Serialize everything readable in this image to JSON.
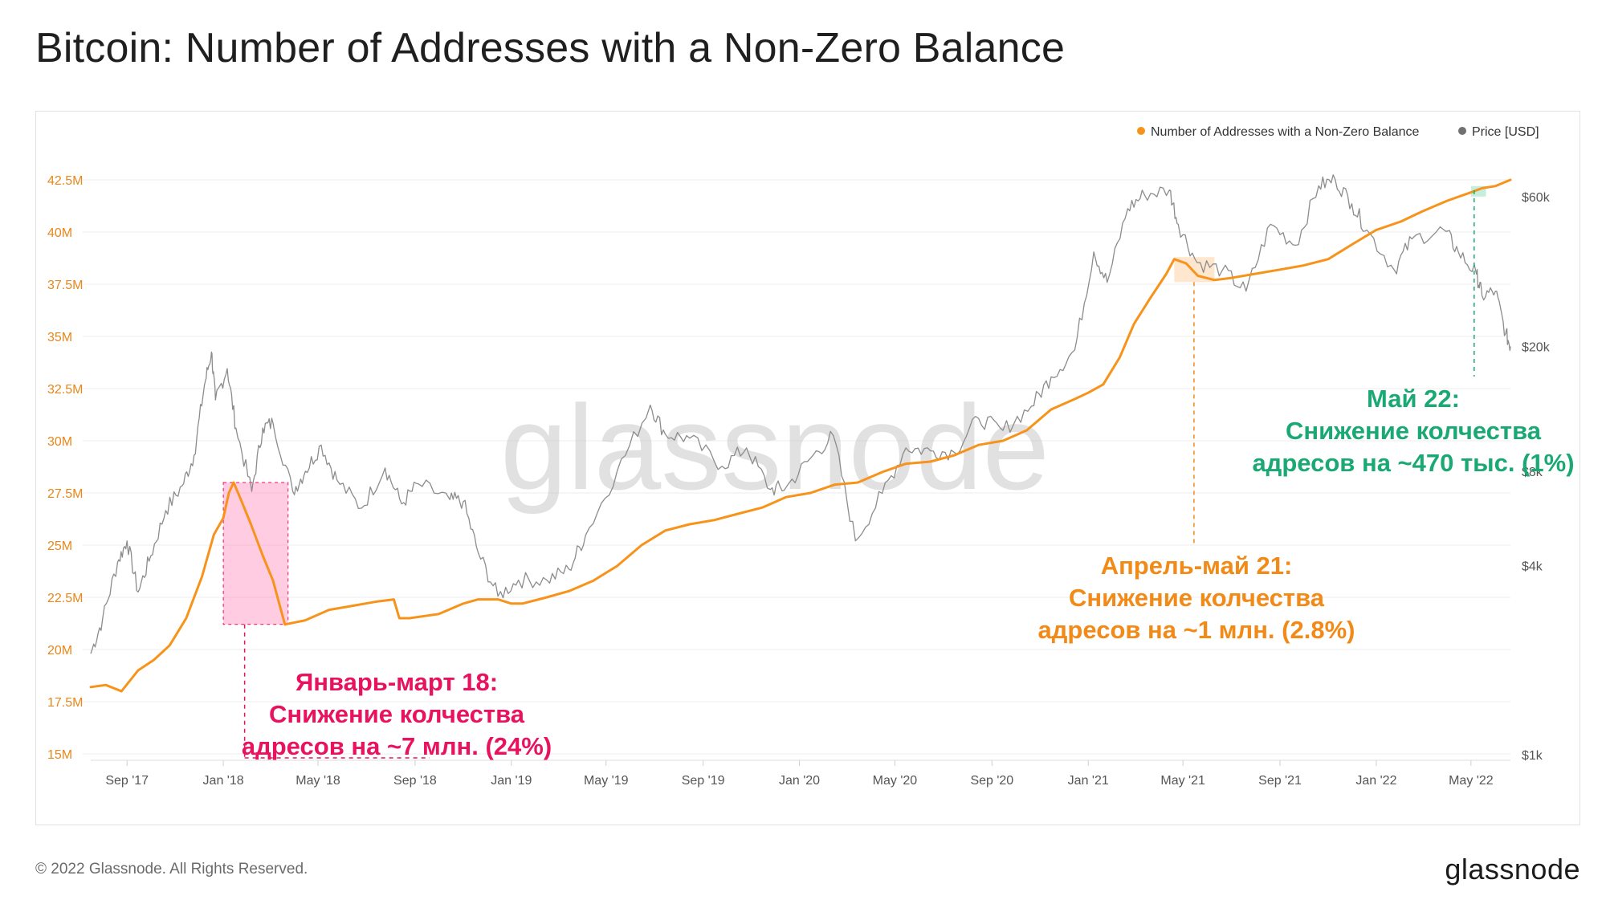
{
  "title": "Bitcoin: Number of Addresses with a Non-Zero Balance",
  "footer": "© 2022 Glassnode. All Rights Reserved.",
  "brand": "glassnode",
  "watermark": "glassnode",
  "colors": {
    "addresses": "#f7931a",
    "price": "#8c8c8c",
    "grid": "#ececec",
    "axis_label": "#e8871a",
    "annotation_jan18": "#e8125f",
    "annotation_apr21": "#f28a17",
    "annotation_may22": "#1aa974"
  },
  "chart_data": {
    "type": "line",
    "title": "Bitcoin: Number of Addresses with a Non-Zero Balance",
    "legend": {
      "placement": "top-right",
      "entries": [
        {
          "label": "Number of Addresses with a Non-Zero Balance",
          "color": "#f7931a"
        },
        {
          "label": "Price [USD]",
          "color": "#707070"
        }
      ]
    },
    "x_ticks": [
      "Sep '17",
      "Jan '18",
      "May '18",
      "Sep '18",
      "Jan '19",
      "May '19",
      "Sep '19",
      "Jan '20",
      "May '20",
      "Sep '20",
      "Jan '21",
      "May '21",
      "Sep '21",
      "Jan '22",
      "May '22"
    ],
    "x_range": [
      "2017-07-17",
      "2022-06-20"
    ],
    "y_left": {
      "ticks": [
        "15M",
        "17.5M",
        "20M",
        "22.5M",
        "25M",
        "27.5M",
        "30M",
        "32.5M",
        "35M",
        "37.5M",
        "40M",
        "42.5M"
      ],
      "range": [
        15000000,
        42500000
      ]
    },
    "y_right": {
      "scale": "log",
      "ticks": [
        "$1k",
        "$4k",
        "$8k",
        "$20k",
        "$60k"
      ]
    },
    "grid": true,
    "series": [
      {
        "name": "Number of Addresses with a Non-Zero Balance",
        "axis": "left",
        "points": [
          [
            "2017-07-17",
            18.2
          ],
          [
            "2017-08-05",
            18.3
          ],
          [
            "2017-08-25",
            18.0
          ],
          [
            "2017-09-15",
            19.0
          ],
          [
            "2017-10-05",
            19.5
          ],
          [
            "2017-10-25",
            20.2
          ],
          [
            "2017-11-15",
            21.5
          ],
          [
            "2017-12-05",
            23.5
          ],
          [
            "2017-12-20",
            25.5
          ],
          [
            "2018-01-01",
            26.3
          ],
          [
            "2018-01-08",
            27.5
          ],
          [
            "2018-01-14",
            28.0
          ],
          [
            "2018-01-22",
            27.3
          ],
          [
            "2018-02-05",
            26.0
          ],
          [
            "2018-02-20",
            24.5
          ],
          [
            "2018-03-05",
            23.3
          ],
          [
            "2018-03-20",
            21.2
          ],
          [
            "2018-04-15",
            21.4
          ],
          [
            "2018-05-15",
            21.9
          ],
          [
            "2018-06-15",
            22.1
          ],
          [
            "2018-07-15",
            22.3
          ],
          [
            "2018-08-05",
            22.4
          ],
          [
            "2018-08-12",
            21.5
          ],
          [
            "2018-08-25",
            21.5
          ],
          [
            "2018-10-01",
            21.7
          ],
          [
            "2018-11-01",
            22.2
          ],
          [
            "2018-11-20",
            22.4
          ],
          [
            "2018-12-15",
            22.4
          ],
          [
            "2019-01-01",
            22.2
          ],
          [
            "2019-01-15",
            22.2
          ],
          [
            "2019-02-15",
            22.5
          ],
          [
            "2019-03-15",
            22.8
          ],
          [
            "2019-04-15",
            23.3
          ],
          [
            "2019-05-15",
            24.0
          ],
          [
            "2019-06-15",
            25.0
          ],
          [
            "2019-07-15",
            25.7
          ],
          [
            "2019-08-15",
            26.0
          ],
          [
            "2019-09-15",
            26.2
          ],
          [
            "2019-10-15",
            26.5
          ],
          [
            "2019-11-15",
            26.8
          ],
          [
            "2019-12-15",
            27.3
          ],
          [
            "2020-01-15",
            27.5
          ],
          [
            "2020-02-15",
            27.9
          ],
          [
            "2020-03-15",
            28.0
          ],
          [
            "2020-04-15",
            28.5
          ],
          [
            "2020-05-15",
            28.9
          ],
          [
            "2020-06-15",
            29.0
          ],
          [
            "2020-07-15",
            29.3
          ],
          [
            "2020-08-15",
            29.8
          ],
          [
            "2020-09-15",
            30.0
          ],
          [
            "2020-10-15",
            30.5
          ],
          [
            "2020-11-15",
            31.5
          ],
          [
            "2020-12-15",
            32.0
          ],
          [
            "2021-01-01",
            32.3
          ],
          [
            "2021-01-20",
            32.7
          ],
          [
            "2021-02-10",
            34.0
          ],
          [
            "2021-02-28",
            35.6
          ],
          [
            "2021-03-20",
            36.8
          ],
          [
            "2021-04-10",
            38.0
          ],
          [
            "2021-04-20",
            38.7
          ],
          [
            "2021-05-05",
            38.5
          ],
          [
            "2021-05-20",
            37.9
          ],
          [
            "2021-06-10",
            37.7
          ],
          [
            "2021-07-01",
            37.8
          ],
          [
            "2021-08-01",
            38.0
          ],
          [
            "2021-09-01",
            38.2
          ],
          [
            "2021-10-01",
            38.4
          ],
          [
            "2021-11-01",
            38.7
          ],
          [
            "2021-12-01",
            39.4
          ],
          [
            "2022-01-01",
            40.1
          ],
          [
            "2022-02-01",
            40.5
          ],
          [
            "2022-03-01",
            41.0
          ],
          [
            "2022-04-01",
            41.5
          ],
          [
            "2022-05-01",
            41.9
          ],
          [
            "2022-05-15",
            42.1
          ],
          [
            "2022-06-01",
            42.2
          ],
          [
            "2022-06-20",
            42.5
          ]
        ]
      },
      {
        "name": "Price [USD]",
        "axis": "right",
        "points": [
          [
            "2017-07-17",
            2100
          ],
          [
            "2017-08-01",
            2700
          ],
          [
            "2017-08-20",
            4100
          ],
          [
            "2017-09-01",
            4800
          ],
          [
            "2017-09-15",
            3300
          ],
          [
            "2017-10-01",
            4300
          ],
          [
            "2017-10-20",
            6000
          ],
          [
            "2017-11-10",
            7200
          ],
          [
            "2017-11-25",
            9000
          ],
          [
            "2017-12-08",
            15000
          ],
          [
            "2017-12-17",
            19200
          ],
          [
            "2017-12-22",
            13500
          ],
          [
            "2018-01-06",
            17000
          ],
          [
            "2018-01-17",
            11000
          ],
          [
            "2018-02-06",
            6900
          ],
          [
            "2018-02-20",
            11000
          ],
          [
            "2018-03-05",
            11400
          ],
          [
            "2018-03-30",
            6900
          ],
          [
            "2018-04-15",
            8000
          ],
          [
            "2018-05-05",
            9700
          ],
          [
            "2018-05-25",
            7500
          ],
          [
            "2018-06-25",
            6100
          ],
          [
            "2018-07-25",
            8200
          ],
          [
            "2018-08-15",
            6300
          ],
          [
            "2018-09-05",
            7300
          ],
          [
            "2018-10-15",
            6500
          ],
          [
            "2018-11-01",
            6400
          ],
          [
            "2018-11-20",
            4400
          ],
          [
            "2018-12-15",
            3200
          ],
          [
            "2019-01-10",
            3600
          ],
          [
            "2019-02-15",
            3600
          ],
          [
            "2019-03-15",
            3900
          ],
          [
            "2019-04-05",
            5000
          ],
          [
            "2019-05-15",
            8000
          ],
          [
            "2019-06-26",
            13000
          ],
          [
            "2019-07-15",
            10500
          ],
          [
            "2019-08-15",
            10200
          ],
          [
            "2019-09-25",
            8300
          ],
          [
            "2019-10-26",
            9500
          ],
          [
            "2019-11-25",
            7000
          ],
          [
            "2019-12-15",
            7100
          ],
          [
            "2020-01-15",
            8800
          ],
          [
            "2020-02-13",
            10400
          ],
          [
            "2020-03-12",
            4800
          ],
          [
            "2020-04-15",
            6800
          ],
          [
            "2020-05-15",
            9500
          ],
          [
            "2020-06-15",
            9300
          ],
          [
            "2020-07-15",
            9200
          ],
          [
            "2020-08-15",
            11800
          ],
          [
            "2020-09-15",
            10800
          ],
          [
            "2020-10-21",
            12900
          ],
          [
            "2020-11-15",
            16000
          ],
          [
            "2020-12-15",
            19500
          ],
          [
            "2021-01-08",
            40000
          ],
          [
            "2021-01-25",
            32000
          ],
          [
            "2021-02-20",
            55000
          ],
          [
            "2021-03-13",
            61000
          ],
          [
            "2021-04-14",
            63000
          ],
          [
            "2021-04-25",
            49000
          ],
          [
            "2021-05-19",
            37000
          ],
          [
            "2021-06-20",
            35000
          ],
          [
            "2021-07-20",
            30000
          ],
          [
            "2021-08-20",
            49000
          ],
          [
            "2021-09-21",
            42000
          ],
          [
            "2021-10-20",
            65000
          ],
          [
            "2021-11-10",
            68000
          ],
          [
            "2021-12-01",
            57000
          ],
          [
            "2021-12-20",
            47000
          ],
          [
            "2022-01-24",
            35000
          ],
          [
            "2022-02-15",
            44000
          ],
          [
            "2022-03-28",
            47000
          ],
          [
            "2022-04-15",
            40000
          ],
          [
            "2022-05-08",
            34000
          ],
          [
            "2022-05-15",
            29000
          ],
          [
            "2022-06-01",
            30000
          ],
          [
            "2022-06-14",
            22000
          ],
          [
            "2022-06-20",
            20000
          ]
        ]
      }
    ],
    "annotations": [
      {
        "id": "jan18",
        "lines": [
          "Январь-март 18:",
          "Снижение колчества",
          "адресов на ~7 млн. (24%)"
        ]
      },
      {
        "id": "apr21",
        "lines": [
          "Апрель-май 21:",
          "Снижение колчества",
          "адресов на ~1 млн. (2.8%)"
        ]
      },
      {
        "id": "may22",
        "lines": [
          "Май 22:",
          "Снижение колчества",
          "адресов  на ~470 тыс. (1%)"
        ]
      }
    ]
  }
}
